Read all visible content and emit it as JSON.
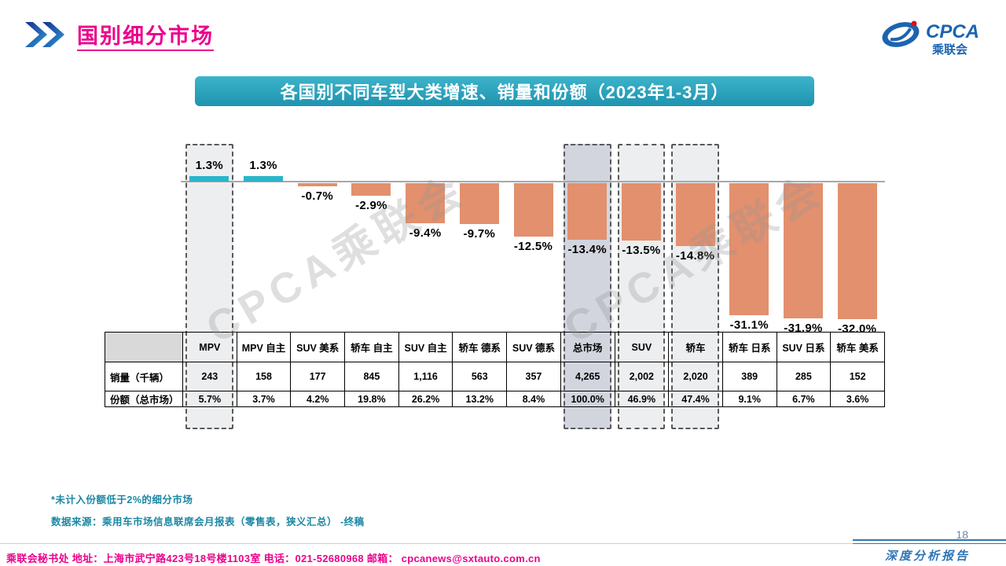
{
  "header": {
    "title": "国别细分市场"
  },
  "logo": {
    "title": "CPCA",
    "subtitle": "乘联会"
  },
  "banner": {
    "title": "各国别不同车型大类增速、销量和份额（2023年1-3月）"
  },
  "watermark": "CPCA乘联会",
  "chart_data": {
    "type": "bar",
    "title": "各国别不同车型大类增速、销量和份额（2023年1-3月）",
    "categories": [
      "MPV",
      "MPV 自主",
      "SUV 美系",
      "轿车 自主",
      "SUV 自主",
      "轿车 德系",
      "SUV 德系",
      "总市场",
      "SUV",
      "轿车",
      "轿车 日系",
      "SUV 日系",
      "轿车 美系"
    ],
    "values": [
      1.3,
      1.3,
      -0.7,
      -2.9,
      -9.4,
      -9.7,
      -12.5,
      -13.4,
      -13.5,
      -14.8,
      -31.1,
      -31.9,
      -32.0
    ],
    "value_labels": [
      "1.3%",
      "1.3%",
      "-0.7%",
      "-2.9%",
      "-9.4%",
      "-9.7%",
      "-12.5%",
      "-13.4%",
      "-13.5%",
      "-14.8%",
      "-31.1%",
      "-31.9%",
      "-32.0%"
    ],
    "sales_row_label": "销量（千辆）",
    "sales": [
      "243",
      "158",
      "177",
      "845",
      "1,116",
      "563",
      "357",
      "4,265",
      "2,002",
      "2,020",
      "389",
      "285",
      "152"
    ],
    "share_row_label": "份额（总市场）",
    "share": [
      "5.7%",
      "3.7%",
      "4.2%",
      "19.8%",
      "26.2%",
      "13.2%",
      "8.4%",
      "100.0%",
      "46.9%",
      "47.4%",
      "9.1%",
      "6.7%",
      "3.6%"
    ],
    "highlighted": [
      0,
      7,
      8,
      9
    ],
    "dark_highlight": 7,
    "colors": {
      "positive": "#2ab5c9",
      "negative": "#e2906e"
    },
    "ylim": [
      -35,
      5
    ],
    "xlabel": "",
    "ylabel": ""
  },
  "notes": {
    "note1": "*未计入份额低于2%的细分市场",
    "note2": "数据来源：乘用车市场信息联席会月报表（零售表，狭义汇总） -终稿"
  },
  "footer": {
    "left": "乘联会秘书处   地址：上海市武宁路423号18号楼1103室 电话：021-52680968   邮箱： ",
    "email": "cpcanews@sxtauto.com.cn",
    "report": "深度分析报告",
    "page": "18"
  }
}
